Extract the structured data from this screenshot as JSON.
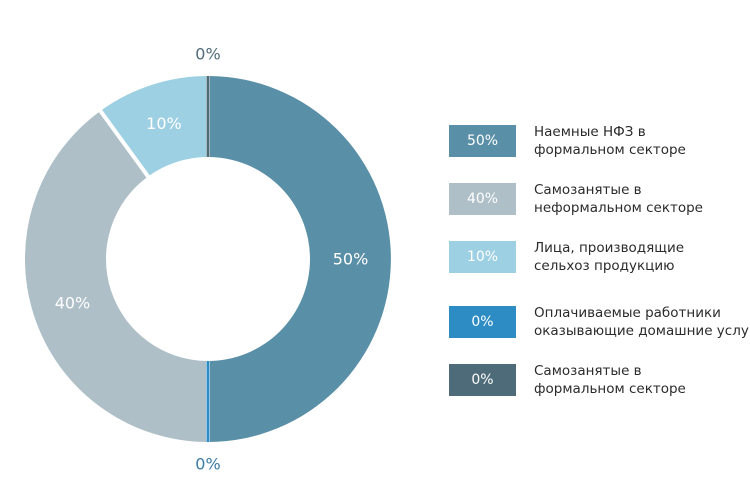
{
  "chart_data": {
    "type": "pie",
    "variant": "donut",
    "title": "",
    "slices": [
      {
        "value": 50,
        "label": "50%",
        "legend_lines": [
          "Наемные НФЗ в",
          "формальном секторе"
        ],
        "color": "#5a8fa8",
        "text_color": "#ffffff"
      },
      {
        "value": 0,
        "label": "0%",
        "legend_lines": [
          "Оплачиваемые работники",
          "оказывающие домашние услуги"
        ],
        "color": "#2e8cc4",
        "text_color": "#3a7ca5"
      },
      {
        "value": 40,
        "label": "40%",
        "legend_lines": [
          "Самозанятые в",
          "неформальном секторе"
        ],
        "color": "#aebfc8",
        "text_color": "#ffffff"
      },
      {
        "value": 10,
        "label": "10%",
        "legend_lines": [
          "Лица, производящие",
          "сельхоз продукцию"
        ],
        "color": "#9dd0e2",
        "text_color": "#ffffff"
      },
      {
        "value": 0,
        "label": "0%",
        "legend_lines": [
          "Самозанятые в",
          "формальном секторе"
        ],
        "color": "#4e6b79",
        "text_color": "#4e6b79"
      }
    ],
    "legend_order": [
      0,
      2,
      3,
      1,
      4
    ],
    "legend_position": "right"
  }
}
